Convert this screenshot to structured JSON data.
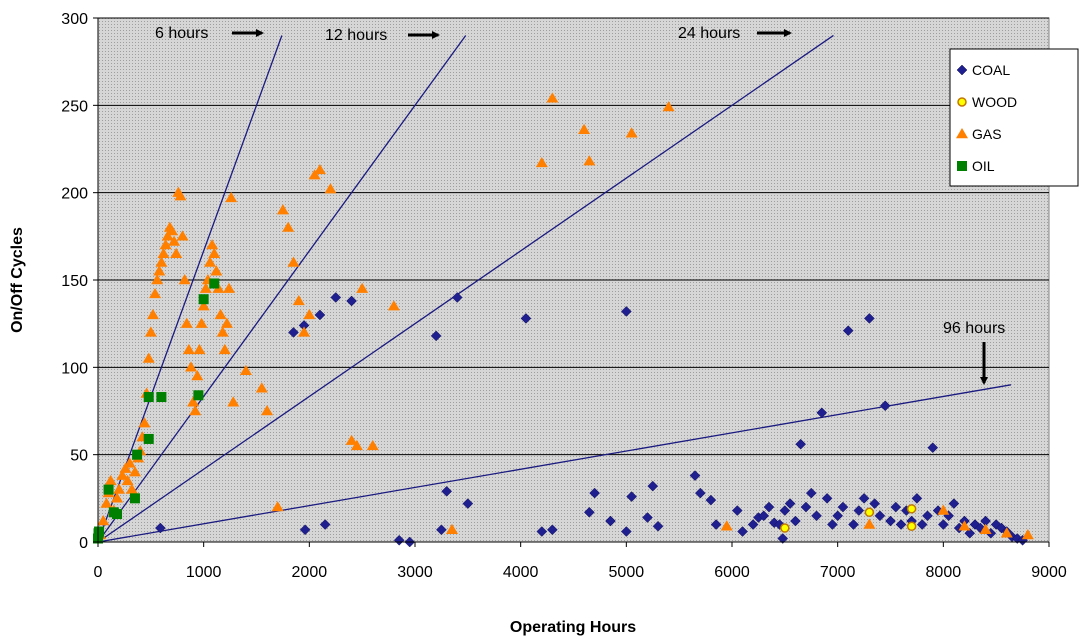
{
  "chart_data": {
    "type": "scatter",
    "title": "",
    "xlabel": "Operating Hours",
    "ylabel": "On/Off Cycles",
    "xlim": [
      0,
      9000
    ],
    "ylim": [
      0,
      300
    ],
    "xticks": [
      0,
      1000,
      2000,
      3000,
      4000,
      5000,
      6000,
      7000,
      8000,
      9000
    ],
    "yticks": [
      0,
      50,
      100,
      150,
      200,
      250,
      300
    ],
    "grid": "horizontal",
    "plot_background": "dotted-gray",
    "legend_position": "top-right",
    "series": [
      {
        "name": "COAL",
        "marker": "diamond",
        "color": "#1f1f8f",
        "points": [
          [
            590,
            8
          ],
          [
            1850,
            120
          ],
          [
            1950,
            124
          ],
          [
            2100,
            130
          ],
          [
            2250,
            140
          ],
          [
            2400,
            138
          ],
          [
            1960,
            7
          ],
          [
            2150,
            10
          ],
          [
            2850,
            1
          ],
          [
            2950,
            0
          ],
          [
            3200,
            118
          ],
          [
            3400,
            140
          ],
          [
            3300,
            29
          ],
          [
            3500,
            22
          ],
          [
            3250,
            7
          ],
          [
            4050,
            128
          ],
          [
            4200,
            6
          ],
          [
            4300,
            7
          ],
          [
            4650,
            17
          ],
          [
            4700,
            28
          ],
          [
            4850,
            12
          ],
          [
            5000,
            6
          ],
          [
            5050,
            26
          ],
          [
            5200,
            14
          ],
          [
            5250,
            32
          ],
          [
            5300,
            9
          ],
          [
            5000,
            132
          ],
          [
            5650,
            38
          ],
          [
            5700,
            28
          ],
          [
            5800,
            24
          ],
          [
            5850,
            10
          ],
          [
            6050,
            18
          ],
          [
            6100,
            6
          ],
          [
            6200,
            10
          ],
          [
            6250,
            14
          ],
          [
            6300,
            15
          ],
          [
            6350,
            20
          ],
          [
            6400,
            11
          ],
          [
            6450,
            10
          ],
          [
            6480,
            2
          ],
          [
            6500,
            18
          ],
          [
            6550,
            22
          ],
          [
            6600,
            12
          ],
          [
            6650,
            56
          ],
          [
            6700,
            20
          ],
          [
            6750,
            28
          ],
          [
            6800,
            15
          ],
          [
            6850,
            74
          ],
          [
            6900,
            25
          ],
          [
            6950,
            10
          ],
          [
            7000,
            15
          ],
          [
            7050,
            20
          ],
          [
            7100,
            121
          ],
          [
            7150,
            10
          ],
          [
            7200,
            18
          ],
          [
            7250,
            25
          ],
          [
            7300,
            128
          ],
          [
            7350,
            22
          ],
          [
            7400,
            15
          ],
          [
            7450,
            78
          ],
          [
            7500,
            12
          ],
          [
            7550,
            20
          ],
          [
            7600,
            10
          ],
          [
            7650,
            18
          ],
          [
            7700,
            12
          ],
          [
            7750,
            25
          ],
          [
            7800,
            10
          ],
          [
            7850,
            15
          ],
          [
            7900,
            54
          ],
          [
            7950,
            18
          ],
          [
            8000,
            10
          ],
          [
            8050,
            15
          ],
          [
            8100,
            22
          ],
          [
            8150,
            8
          ],
          [
            8200,
            12
          ],
          [
            8250,
            5
          ],
          [
            8300,
            10
          ],
          [
            8350,
            8
          ],
          [
            8400,
            12
          ],
          [
            8450,
            5
          ],
          [
            8500,
            10
          ],
          [
            8550,
            8
          ],
          [
            8600,
            6
          ],
          [
            8650,
            3
          ],
          [
            8700,
            2
          ],
          [
            8750,
            1
          ]
        ]
      },
      {
        "name": "WOOD",
        "marker": "circle",
        "color": "#ffff00",
        "points": [
          [
            6500,
            8
          ],
          [
            7300,
            17
          ],
          [
            7700,
            19
          ],
          [
            7700,
            9
          ]
        ]
      },
      {
        "name": "GAS",
        "marker": "triangle",
        "color": "#ff8000",
        "points": [
          [
            20,
            4
          ],
          [
            50,
            12
          ],
          [
            80,
            22
          ],
          [
            100,
            28
          ],
          [
            120,
            35
          ],
          [
            150,
            18
          ],
          [
            180,
            25
          ],
          [
            200,
            30
          ],
          [
            230,
            38
          ],
          [
            260,
            42
          ],
          [
            280,
            35
          ],
          [
            300,
            45
          ],
          [
            320,
            30
          ],
          [
            350,
            40
          ],
          [
            380,
            48
          ],
          [
            400,
            52
          ],
          [
            420,
            60
          ],
          [
            440,
            68
          ],
          [
            460,
            85
          ],
          [
            480,
            105
          ],
          [
            500,
            120
          ],
          [
            520,
            130
          ],
          [
            540,
            142
          ],
          [
            560,
            150
          ],
          [
            580,
            155
          ],
          [
            600,
            160
          ],
          [
            620,
            165
          ],
          [
            640,
            170
          ],
          [
            660,
            175
          ],
          [
            680,
            180
          ],
          [
            700,
            178
          ],
          [
            720,
            172
          ],
          [
            740,
            165
          ],
          [
            760,
            200
          ],
          [
            780,
            198
          ],
          [
            800,
            175
          ],
          [
            820,
            150
          ],
          [
            840,
            125
          ],
          [
            860,
            110
          ],
          [
            880,
            100
          ],
          [
            900,
            80
          ],
          [
            920,
            75
          ],
          [
            940,
            95
          ],
          [
            960,
            110
          ],
          [
            980,
            125
          ],
          [
            1000,
            135
          ],
          [
            1020,
            145
          ],
          [
            1040,
            150
          ],
          [
            1060,
            160
          ],
          [
            1080,
            170
          ],
          [
            1100,
            165
          ],
          [
            1120,
            155
          ],
          [
            1140,
            145
          ],
          [
            1160,
            130
          ],
          [
            1180,
            120
          ],
          [
            1200,
            110
          ],
          [
            1220,
            125
          ],
          [
            1240,
            145
          ],
          [
            1260,
            197
          ],
          [
            1280,
            80
          ],
          [
            1400,
            98
          ],
          [
            1550,
            88
          ],
          [
            1600,
            75
          ],
          [
            1700,
            20
          ],
          [
            1750,
            190
          ],
          [
            1800,
            180
          ],
          [
            1850,
            160
          ],
          [
            1900,
            138
          ],
          [
            1950,
            120
          ],
          [
            2000,
            130
          ],
          [
            2050,
            210
          ],
          [
            2100,
            213
          ],
          [
            2200,
            202
          ],
          [
            2400,
            58
          ],
          [
            2450,
            55
          ],
          [
            2500,
            145
          ],
          [
            2600,
            55
          ],
          [
            2800,
            135
          ],
          [
            3350,
            7
          ],
          [
            4200,
            217
          ],
          [
            4300,
            254
          ],
          [
            4600,
            236
          ],
          [
            4650,
            218
          ],
          [
            5050,
            234
          ],
          [
            5400,
            249
          ],
          [
            5950,
            9
          ],
          [
            7300,
            10
          ],
          [
            8000,
            18
          ],
          [
            8200,
            9
          ],
          [
            8400,
            7
          ],
          [
            8600,
            5
          ],
          [
            8800,
            4
          ]
        ]
      },
      {
        "name": "OIL",
        "marker": "square",
        "color": "#008000",
        "points": [
          [
            0,
            2
          ],
          [
            5,
            5
          ],
          [
            10,
            6
          ],
          [
            100,
            30
          ],
          [
            150,
            17
          ],
          [
            180,
            16
          ],
          [
            350,
            25
          ],
          [
            370,
            50
          ],
          [
            480,
            59
          ],
          [
            480,
            83
          ],
          [
            600,
            83
          ],
          [
            950,
            84
          ],
          [
            1000,
            139
          ],
          [
            1100,
            148
          ]
        ]
      }
    ],
    "reference_lines": [
      {
        "label": "6 hours",
        "hours_per_cycle": 6,
        "x_end": 1740
      },
      {
        "label": "12 hours",
        "hours_per_cycle": 12,
        "x_end": 3480
      },
      {
        "label": "24 hours",
        "hours_per_cycle": 24,
        "x_end": 6960
      },
      {
        "label": "96 hours",
        "hours_per_cycle": 96,
        "x_end": 8640
      }
    ]
  }
}
